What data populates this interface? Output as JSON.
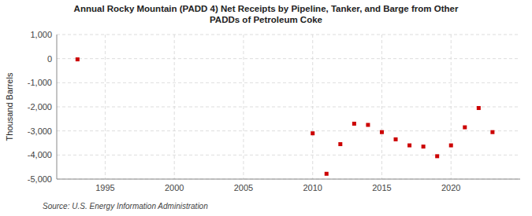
{
  "chart_data": {
    "type": "scatter",
    "title": "Annual Rocky Mountain (PADD 4) Net Receipts by Pipeline, Tanker, and Barge from Other\nPADDs of Petroleum Coke",
    "y_label": "Thousand Barrels",
    "annotations": [
      "Source: U.S. Energy Information Administration"
    ],
    "x": [
      1993,
      2010,
      2011,
      2012,
      2013,
      2014,
      2015,
      2016,
      2017,
      2018,
      2019,
      2020,
      2021,
      2022,
      2023
    ],
    "values": [
      -30,
      -3100,
      -4780,
      -3550,
      -2700,
      -2750,
      -3050,
      -3350,
      -3600,
      -3650,
      -4050,
      -3600,
      -2850,
      -2050,
      -3050
    ],
    "color": "#cc0000",
    "marker": "square",
    "xlim": [
      1991.5,
      2025
    ],
    "ylim": [
      -5000,
      1000
    ],
    "xticks": [
      1995,
      2000,
      2005,
      2010,
      2015,
      2020
    ],
    "yticks": [
      {
        "value": 1000,
        "label": "1,000"
      },
      0,
      {
        "value": -1000,
        "label": "-1,000"
      },
      {
        "value": -2000,
        "label": "-2,000"
      },
      {
        "value": -3000,
        "label": "-3,000"
      },
      {
        "value": -4000,
        "label": "-4,000"
      },
      {
        "value": -5000,
        "label": "-5,000"
      }
    ],
    "grid": true
  }
}
